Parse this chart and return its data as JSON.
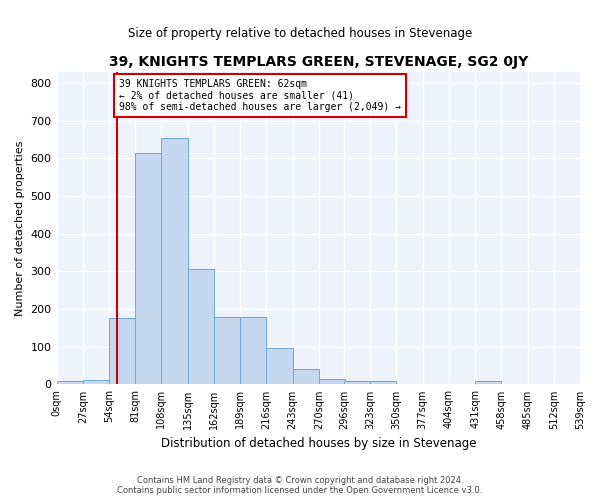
{
  "title": "39, KNIGHTS TEMPLARS GREEN, STEVENAGE, SG2 0JY",
  "subtitle": "Size of property relative to detached houses in Stevenage",
  "xlabel": "Distribution of detached houses by size in Stevenage",
  "ylabel": "Number of detached properties",
  "bar_color": "#c5d8f0",
  "bar_edge_color": "#6aaad4",
  "background_color": "#eef2fb",
  "grid_color": "#ffffff",
  "bin_edges": [
    0,
    27,
    54,
    81,
    108,
    135,
    162,
    189,
    216,
    243,
    270,
    296,
    323,
    350,
    377,
    404,
    431,
    458,
    485,
    512,
    539
  ],
  "bin_labels": [
    "0sqm",
    "27sqm",
    "54sqm",
    "81sqm",
    "108sqm",
    "135sqm",
    "162sqm",
    "189sqm",
    "216sqm",
    "243sqm",
    "270sqm",
    "296sqm",
    "323sqm",
    "350sqm",
    "377sqm",
    "404sqm",
    "431sqm",
    "458sqm",
    "485sqm",
    "512sqm",
    "539sqm"
  ],
  "bar_heights": [
    8,
    13,
    175,
    615,
    655,
    305,
    178,
    178,
    97,
    40,
    15,
    10,
    8,
    0,
    0,
    0,
    8,
    0,
    0,
    0
  ],
  "red_line_x": 62,
  "annotation_text": "39 KNIGHTS TEMPLARS GREEN: 62sqm\n← 2% of detached houses are smaller (41)\n98% of semi-detached houses are larger (2,049) →",
  "annotation_box_color": "#ffffff",
  "annotation_border_color": "#cc0000",
  "red_line_color": "#cc0000",
  "ylim": [
    0,
    830
  ],
  "yticks": [
    0,
    100,
    200,
    300,
    400,
    500,
    600,
    700,
    800
  ],
  "footer_line1": "Contains HM Land Registry data © Crown copyright and database right 2024.",
  "footer_line2": "Contains public sector information licensed under the Open Government Licence v3.0."
}
